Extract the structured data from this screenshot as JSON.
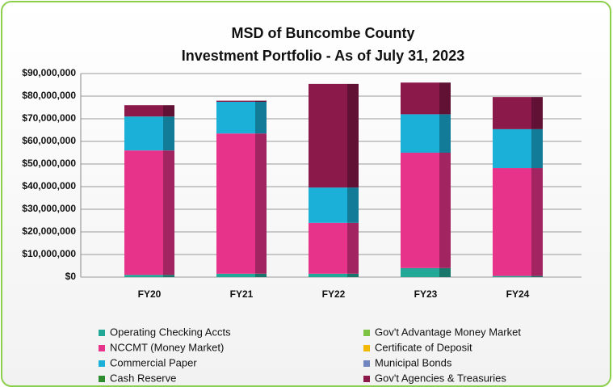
{
  "chart_data": {
    "type": "stacked_bar",
    "title": "MSD of Buncombe County",
    "subtitle": "Investment Portfolio - As of July 31, 2023",
    "categories": [
      "FY20",
      "FY21",
      "FY22",
      "FY23",
      "FY24"
    ],
    "series": [
      {
        "name": "Operating Checking Accts",
        "color": "#22a897",
        "values": [
          1000000,
          1500000,
          1500000,
          4000000,
          500000
        ]
      },
      {
        "name": "Gov't Advantage Money Market",
        "color": "#7dc242",
        "values": [
          0,
          0,
          0,
          0,
          0
        ]
      },
      {
        "name": "NCCMT (Money Market)",
        "color": "#e8338a",
        "values": [
          55000000,
          62000000,
          22500000,
          51000000,
          47700000
        ]
      },
      {
        "name": "Certificate of Deposit",
        "color": "#f5b800",
        "values": [
          0,
          0,
          0,
          0,
          0
        ]
      },
      {
        "name": "Commercial  Paper",
        "color": "#1ab0d8",
        "values": [
          15000000,
          14000000,
          15600000,
          17000000,
          17200000
        ]
      },
      {
        "name": "Municipal Bonds",
        "color": "#6f86c0",
        "values": [
          0,
          0,
          0,
          0,
          0
        ]
      },
      {
        "name": "Cash  Reserve",
        "color": "#2e8b2e",
        "values": [
          0,
          0,
          0,
          0,
          0
        ]
      },
      {
        "name": "Gov't Agencies & Treasuries",
        "color": "#8b1a4a",
        "values": [
          5000000,
          500000,
          45800000,
          14000000,
          14200000
        ]
      }
    ],
    "ylim": [
      0,
      90000000
    ],
    "yticks": [
      {
        "value": 0,
        "label": "$0"
      },
      {
        "value": 10000000,
        "label": "$10,000,000"
      },
      {
        "value": 20000000,
        "label": "$20,000,000"
      },
      {
        "value": 30000000,
        "label": "$30,000,000"
      },
      {
        "value": 40000000,
        "label": "$40,000,000"
      },
      {
        "value": 50000000,
        "label": "$50,000,000"
      },
      {
        "value": 60000000,
        "label": "$60,000,000"
      },
      {
        "value": 70000000,
        "label": "$70,000,000"
      },
      {
        "value": 80000000,
        "label": "$80,000,000"
      },
      {
        "value": 90000000,
        "label": "$90,000,000"
      }
    ],
    "grid": true
  }
}
